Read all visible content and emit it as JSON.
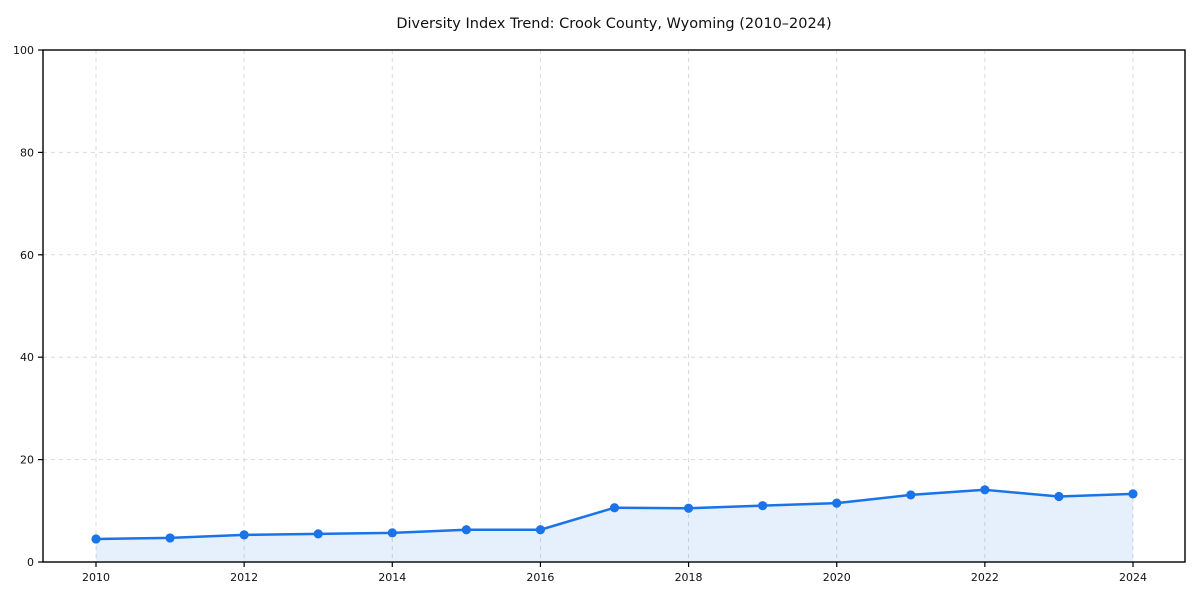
{
  "chart_data": {
    "type": "area",
    "title": "Diversity Index Trend: Crook County, Wyoming (2010–2024)",
    "series_name": "Diversity Index",
    "x": [
      2010,
      2011,
      2012,
      2013,
      2014,
      2015,
      2016,
      2017,
      2018,
      2019,
      2020,
      2021,
      2022,
      2023,
      2024
    ],
    "values": [
      4.5,
      4.7,
      5.3,
      5.5,
      5.7,
      6.3,
      6.3,
      10.6,
      10.5,
      11.0,
      11.5,
      13.1,
      14.1,
      12.8,
      13.3
    ],
    "xticks": [
      2010,
      2012,
      2014,
      2016,
      2018,
      2020,
      2022,
      2024
    ],
    "yticks": [
      0,
      20,
      40,
      60,
      80,
      100
    ],
    "ylim": [
      0,
      100
    ],
    "xlabel": "",
    "ylabel": "",
    "grid": true,
    "grid_style": "dashed",
    "legend": false,
    "marker": "circle",
    "colors": {
      "line": "#1a73e8",
      "marker": "#1a73e8",
      "fill": "rgba(26,115,232,0.11)",
      "grid": "#d9d9d9",
      "spine": "#000000",
      "text": "#111111"
    }
  }
}
